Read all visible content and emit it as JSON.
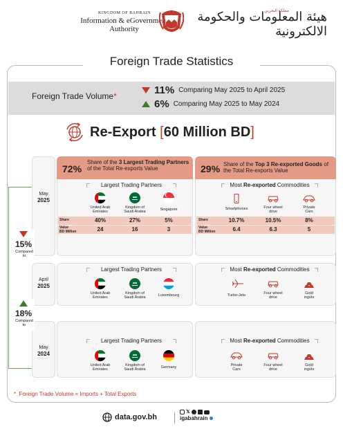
{
  "header": {
    "kingdom": "KINGDOM OF BAHRAIN",
    "authority_line1": "Information & eGovernment",
    "authority_line2": "Authority",
    "arabic_small": "مملكة البحرين",
    "arabic_name": "هيئة المعلومات والحكومة الالكترونية"
  },
  "title": "Foreign Trade Statistics",
  "volume": {
    "label": "Foreign Trade Volume",
    "star": "*",
    "rows": [
      {
        "pct": "11%",
        "direction": "down",
        "text": "Comparing May 2025 to April 2025"
      },
      {
        "pct": "6%",
        "direction": "up",
        "text": "Comparing May 2025 to May 2024"
      }
    ]
  },
  "reexport": {
    "label": "Re-Export",
    "value": "60 Million BD",
    "open": "[",
    "close": "]"
  },
  "partners_header": {
    "pct": "72%",
    "text_pre": "Share of the ",
    "text_bold": "3 Largest Trading Partners",
    "text_post": " of the Total Re-exports Value"
  },
  "goods_header": {
    "pct": "29%",
    "text_pre": "Share of the ",
    "text_bold": "Top 3 Re-exported Goods",
    "text_post": " of the Total Re-exports Value"
  },
  "largest_partners_label": "Largest Trading Partners",
  "most_label_pre": "Most ",
  "most_label_bold": "Re-exported",
  "most_label_post": " Commodities",
  "row_labels": {
    "share": "Share",
    "value1": "Value",
    "value2": "BD Million"
  },
  "periods": [
    {
      "month": "May",
      "year": "2025",
      "partners": [
        {
          "name1": "United Arab",
          "name2": "Emirates",
          "flag": "uae"
        },
        {
          "name1": "Kingdom of",
          "name2": "Saudi Arabia",
          "flag": "ksa"
        },
        {
          "name1": "Singapore",
          "name2": "",
          "flag": "sg"
        }
      ],
      "partner_share": [
        "40%",
        "27%",
        "5%"
      ],
      "partner_value": [
        "24",
        "16",
        "3"
      ],
      "goods": [
        {
          "name1": "Smartphones",
          "name2": "",
          "icon": "phone-icon"
        },
        {
          "name1": "Four wheel",
          "name2": "drive",
          "icon": "suv-icon"
        },
        {
          "name1": "Private",
          "name2": "Cars",
          "icon": "car-icon"
        }
      ],
      "goods_share": [
        "10.7%",
        "10.5%",
        "8%"
      ],
      "goods_value": [
        "6.4",
        "6.3",
        "5"
      ]
    },
    {
      "month": "April",
      "year": "2025",
      "partners": [
        {
          "name1": "United Arab",
          "name2": "Emirates",
          "flag": "uae"
        },
        {
          "name1": "Kingdom of",
          "name2": "Saudi Arabia",
          "flag": "ksa"
        },
        {
          "name1": "Luxembourg",
          "name2": "",
          "flag": "lu"
        }
      ],
      "goods": [
        {
          "name1": "Turbo-Jets",
          "name2": "",
          "icon": "jet-icon"
        },
        {
          "name1": "Four wheel",
          "name2": "drive",
          "icon": "suv-icon"
        },
        {
          "name1": "Gold",
          "name2": "ingots",
          "icon": "gold-icon"
        }
      ]
    },
    {
      "month": "May",
      "year": "2024",
      "partners": [
        {
          "name1": "United Arab",
          "name2": "Emirates",
          "flag": "uae"
        },
        {
          "name1": "Kingdom of",
          "name2": "Saudi Arabia",
          "flag": "ksa"
        },
        {
          "name1": "Germany",
          "name2": "",
          "flag": "de"
        }
      ],
      "goods": [
        {
          "name1": "Private",
          "name2": "Cars",
          "icon": "car-icon"
        },
        {
          "name1": "Four wheel",
          "name2": "drive",
          "icon": "suv-icon"
        },
        {
          "name1": "Gold",
          "name2": "ingots",
          "icon": "gold-icon"
        }
      ]
    }
  ],
  "comparisons": [
    {
      "pct": "15%",
      "label1": "Compared",
      "label2": "to",
      "direction": "down"
    },
    {
      "pct": "18%",
      "label1": "Compared",
      "label2": "to",
      "direction": "up"
    }
  ],
  "footnote": {
    "star": "*",
    "text": "Foreign Trade Volume = Imports + Total Exports"
  },
  "footer": {
    "site": "data.gov.bh",
    "handle": "igabahrain"
  },
  "colors": {
    "accent_red": "#c0392b",
    "accent_green": "#3a7d2c",
    "salmon": "#e59a86"
  }
}
